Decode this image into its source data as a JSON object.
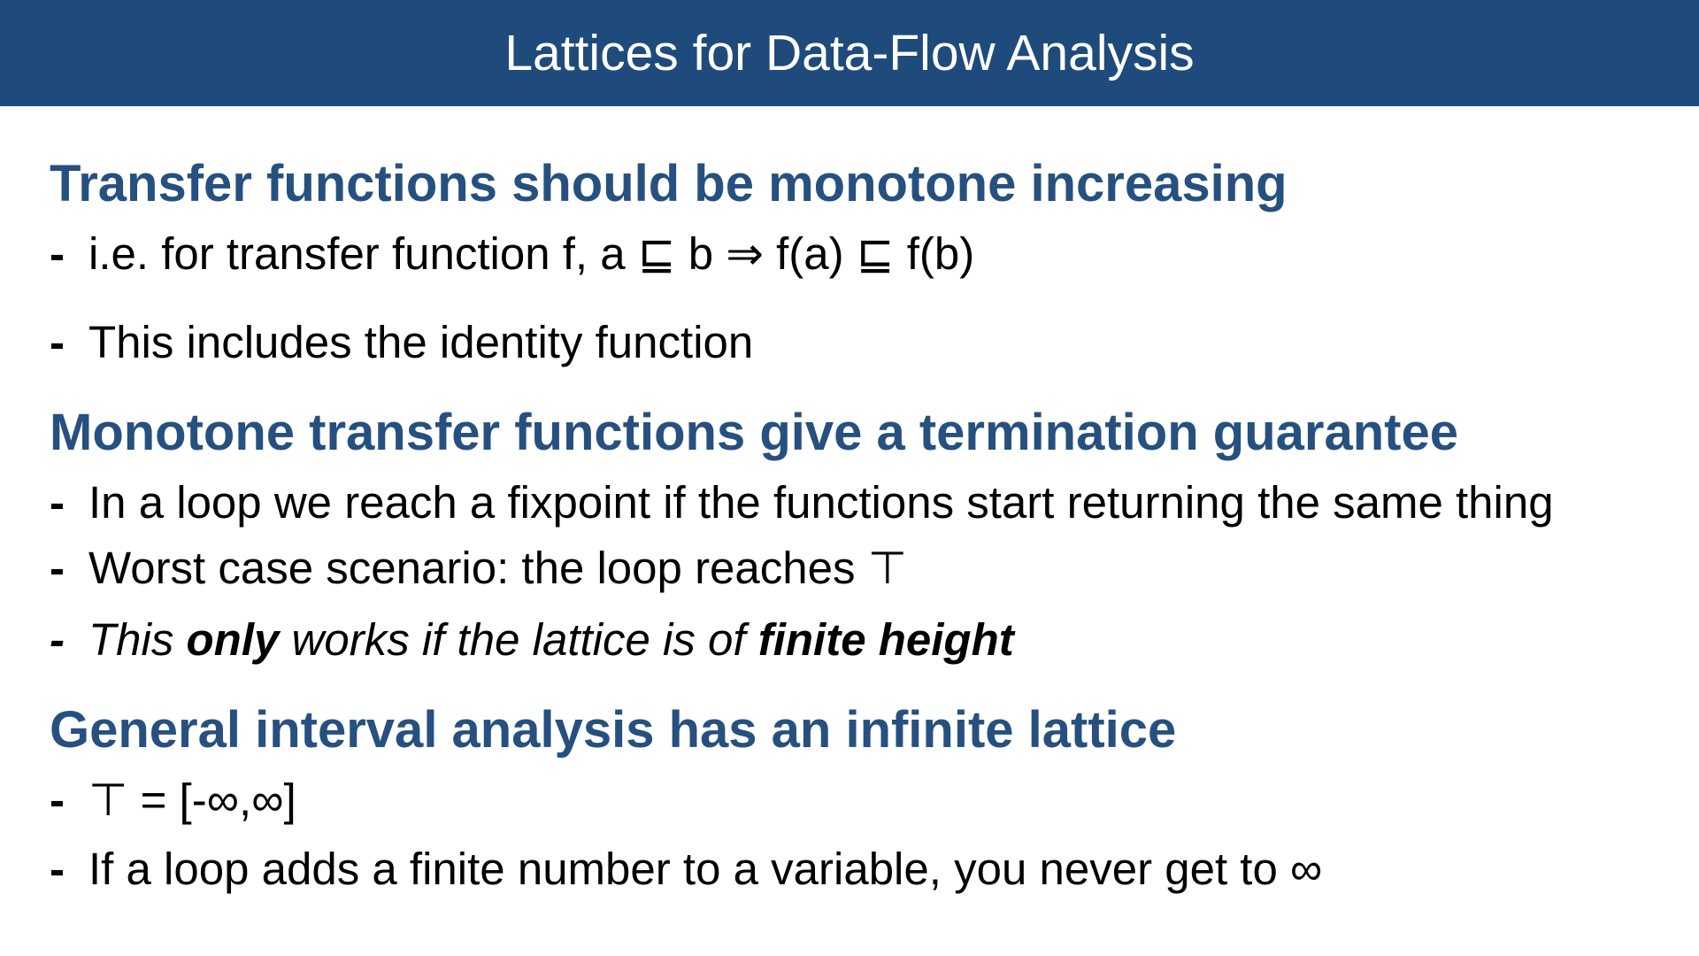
{
  "title": "Lattices for Data-Flow Analysis",
  "bullet_marker": "-",
  "sections": [
    {
      "heading": "Transfer functions should be monotone increasing",
      "bullets": [
        "i.e. for transfer function f, a ⊑ b ⇒ f(a) ⊑ f(b)",
        "This includes the identity function"
      ]
    },
    {
      "heading": "Monotone transfer functions give a termination guarantee",
      "bullets": [
        "In a loop we reach a fixpoint if the functions start returning the same thing",
        "Worst case scenario: the loop reaches ⊤"
      ],
      "emphasis_bullet": {
        "part1": "This ",
        "part2": "only",
        "part3": " works if the lattice is of ",
        "part4": "finite height"
      }
    },
    {
      "heading": "General interval analysis has an infinite lattice",
      "bullets": [
        "⊤ = [-∞,∞]",
        "If a loop adds a finite number to a variable, you never get to ∞"
      ]
    }
  ],
  "colors": {
    "title_bar": "#1f4b7c",
    "heading": "#26507f",
    "body_text": "#000000"
  }
}
